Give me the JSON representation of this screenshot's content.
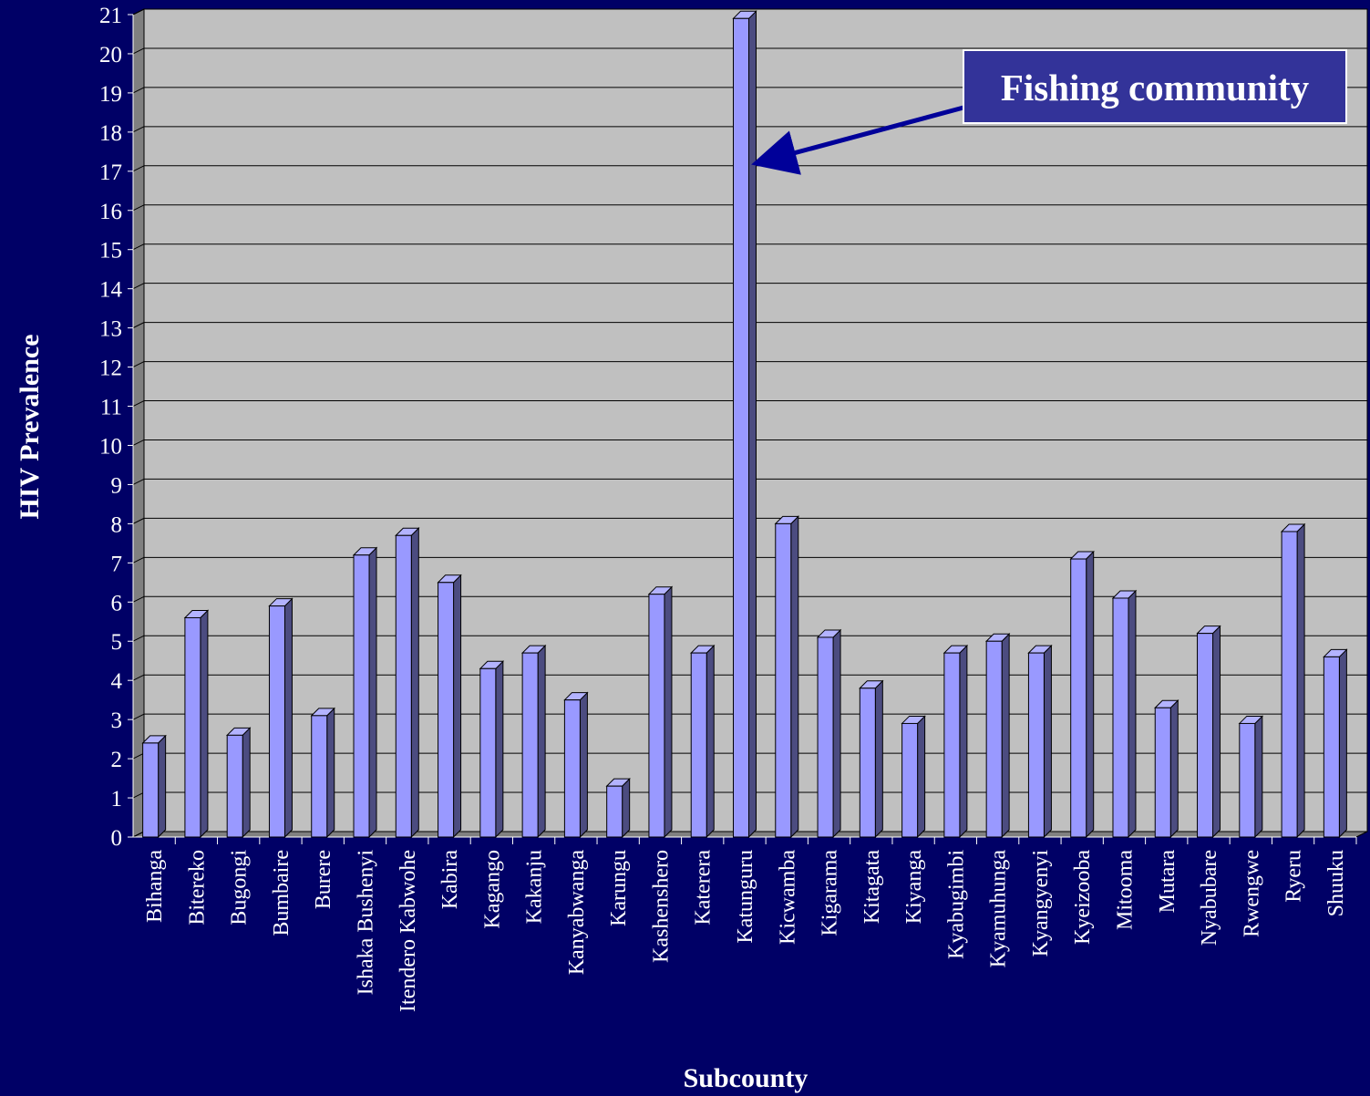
{
  "colors": {
    "background": "#000066",
    "plot_area": "#c0c0c0",
    "floor": "#808080",
    "bar_front": "#9999ff",
    "bar_side": "#4c4c80",
    "bar_top": "#b3b3ff",
    "grid": "#000000",
    "text": "#ffffff",
    "arrow": "#000099",
    "annotation_bg": "#333399"
  },
  "chart_data": {
    "type": "bar",
    "xlabel": "Subcounty",
    "ylabel": "HIV Prevalence",
    "ylim": [
      0,
      21
    ],
    "yticks": [
      0,
      1,
      2,
      3,
      4,
      5,
      6,
      7,
      8,
      9,
      10,
      11,
      12,
      13,
      14,
      15,
      16,
      17,
      18,
      19,
      20,
      21
    ],
    "grid": true,
    "categories": [
      "Bihanga",
      "Bitereko",
      "Bugongi",
      "Bumbaire",
      "Burere",
      "Ishaka Bushenyi",
      "Itendero Kabwohe",
      "Kabira",
      "Kagango",
      "Kakanju",
      "Kanyabwanga",
      "Karungu",
      "Kashenshero",
      "Katerera",
      "Katunguru",
      "Kicwamba",
      "Kigarama",
      "Kitagata",
      "Kiyanga",
      "Kyabugimbi",
      "Kyamuhunga",
      "Kyangyenyi",
      "Kyeizooba",
      "Mitooma",
      "Mutara",
      "Nyabubare",
      "Rwengwe",
      "Ryeru",
      "Shuuku"
    ],
    "values": [
      2.4,
      5.6,
      2.6,
      5.9,
      3.1,
      7.2,
      7.7,
      6.5,
      4.3,
      4.7,
      3.5,
      1.3,
      6.2,
      4.7,
      20.9,
      8.0,
      5.1,
      3.8,
      2.9,
      4.7,
      5.0,
      4.7,
      7.1,
      6.1,
      3.3,
      5.2,
      2.9,
      7.8,
      4.6
    ],
    "annotations": [
      {
        "text": "Fishing community",
        "points_to": "Katunguru",
        "arrow_y": 17.2
      }
    ]
  }
}
